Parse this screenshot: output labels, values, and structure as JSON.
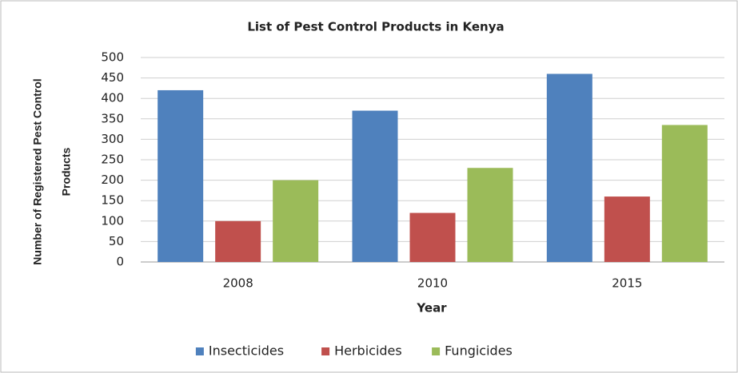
{
  "chart_data": {
    "type": "bar",
    "title": "List of Pest Control Products in Kenya",
    "x_label": "Year",
    "y_label": [
      "Number of Registered Pest Control",
      "Products"
    ],
    "categories": [
      "2008",
      "2010",
      "2015"
    ],
    "series": [
      {
        "name": "Insecticides",
        "color": "#4f81bd",
        "values": [
          420,
          370,
          460
        ]
      },
      {
        "name": "Herbicides",
        "color": "#c0504d",
        "values": [
          100,
          120,
          160
        ]
      },
      {
        "name": "Fungicides",
        "color": "#9bbb59",
        "values": [
          200,
          230,
          335
        ]
      }
    ],
    "ylim": [
      0,
      500
    ],
    "yticks": [
      0,
      50,
      100,
      150,
      200,
      250,
      300,
      350,
      400,
      450,
      500
    ],
    "grid": true,
    "legend": "bottom"
  }
}
